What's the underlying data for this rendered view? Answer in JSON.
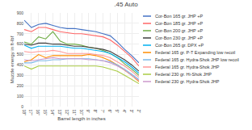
{
  "chart_data": {
    "type": "line",
    "title": ".45 Auto",
    "xlabel": "Barrel length in inches",
    "ylabel": "Muzzle energy in ft-lbf",
    "categories": [
      "18\"",
      "17\"",
      "16\"",
      "15\"",
      "14\"",
      "13\"",
      "12\"",
      "11\"",
      "10\"",
      "9\"",
      "8\"",
      "7\"",
      "6\"",
      "5\"",
      "4\"",
      "3\"",
      "2\""
    ],
    "series": [
      {
        "name": "Cor-Bon 165 gr. JHP +P",
        "color": "#4472C4",
        "values": [
          830,
          760,
          790,
          800,
          780,
          760,
          750,
          750,
          740,
          730,
          720,
          700,
          680,
          620,
          550,
          490,
          420
        ]
      },
      {
        "name": "Cor-Bon 185 gr. JHP +P",
        "color": "#FF6666",
        "values": [
          740,
          720,
          760,
          760,
          740,
          720,
          710,
          700,
          700,
          690,
          680,
          670,
          640,
          590,
          530,
          470,
          390
        ]
      },
      {
        "name": "Cor-Bon 200 gr. JHP +P",
        "color": "#70AD47",
        "values": [
          620,
          600,
          670,
          650,
          720,
          630,
          600,
          600,
          590,
          570,
          560,
          540,
          510,
          470,
          410,
          360,
          300
        ]
      },
      {
        "name": "Cor-Bon 230 gr. JHP +P",
        "color": "#404040",
        "values": [
          600,
          590,
          610,
          610,
          600,
          600,
          590,
          580,
          580,
          570,
          560,
          550,
          530,
          490,
          450,
          400,
          340
        ]
      },
      {
        "name": "Cor-Bon 265 gr. DPX +P",
        "color": "#00B0F0",
        "values": [
          590,
          560,
          580,
          580,
          580,
          580,
          570,
          560,
          560,
          550,
          540,
          530,
          510,
          470,
          430,
          380,
          320
        ]
      },
      {
        "name": "Federal 165 gr. P-T Expanding low recoil",
        "color": "#FF8C00",
        "values": [
          430,
          450,
          500,
          470,
          490,
          490,
          490,
          490,
          490,
          500,
          490,
          470,
          440,
          400,
          350,
          300,
          240
        ]
      },
      {
        "name": "Federal 165 gr. Hydra-Shok JHP low recoil",
        "color": "#7CB9E8",
        "values": [
          420,
          420,
          440,
          440,
          450,
          450,
          460,
          460,
          460,
          460,
          450,
          440,
          430,
          400,
          360,
          310,
          260
        ]
      },
      {
        "name": "Federal 165 gr. Hydra-Shok JHP",
        "color": "#FF9999",
        "values": [
          530,
          520,
          530,
          530,
          540,
          530,
          510,
          510,
          510,
          510,
          500,
          490,
          470,
          430,
          390,
          340,
          280
        ]
      },
      {
        "name": "Federal 230 gr. Hi-Shok JHP",
        "color": "#AACC44",
        "values": [
          390,
          360,
          390,
          390,
          390,
          390,
          390,
          390,
          390,
          390,
          390,
          380,
          360,
          340,
          300,
          260,
          220
        ]
      },
      {
        "name": "Federal 230 gr. Hydra-Shok JHP",
        "color": "#CC99CC",
        "values": [
          450,
          440,
          450,
          460,
          470,
          460,
          460,
          460,
          460,
          450,
          450,
          440,
          420,
          390,
          350,
          300,
          250
        ]
      }
    ],
    "ylim": [
      0,
      900
    ],
    "yticks": [
      0,
      100,
      200,
      300,
      400,
      500,
      600,
      700,
      800,
      900
    ],
    "grid": true,
    "legend": "right"
  }
}
